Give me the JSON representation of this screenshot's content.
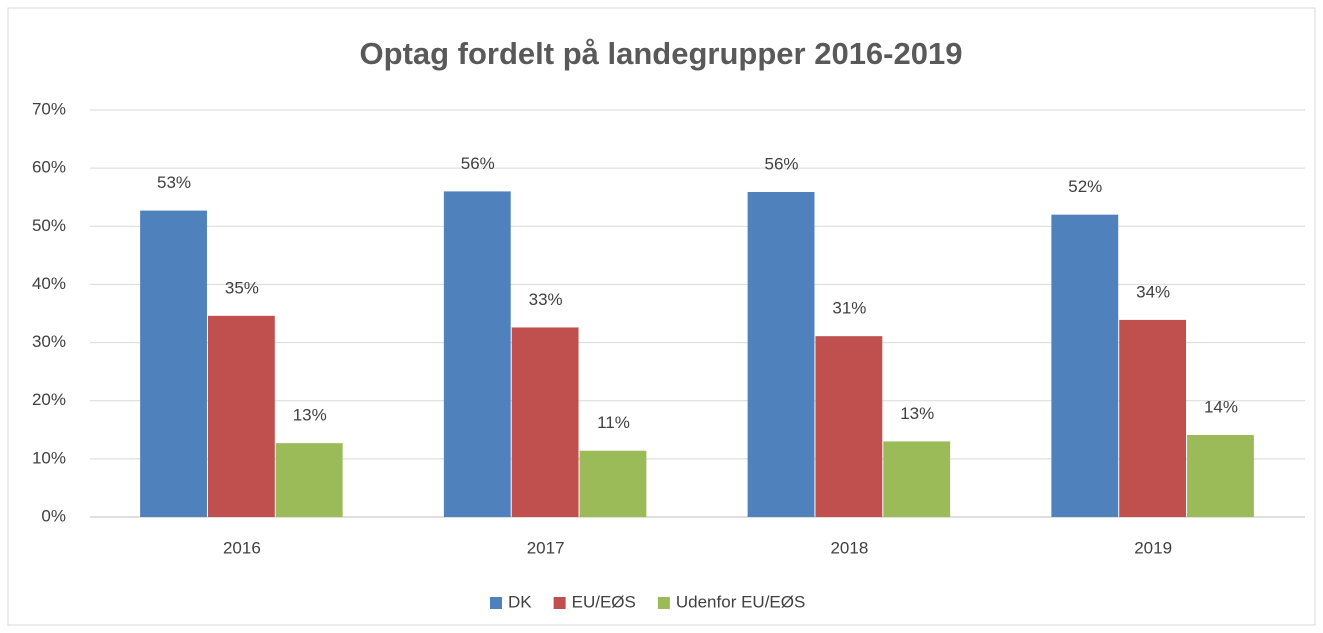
{
  "chart_data": {
    "type": "bar",
    "title": "Optag fordelt på landegrupper 2016-2019",
    "categories": [
      "2016",
      "2017",
      "2018",
      "2019"
    ],
    "series": [
      {
        "name": "DK",
        "color": "#4f81bd",
        "values": [
          52.7,
          56,
          55.9,
          52
        ],
        "value_labels": [
          "53%",
          "56%",
          "56%",
          "52%"
        ]
      },
      {
        "name": "EU/EØS",
        "color": "#c0504d",
        "values": [
          34.6,
          32.6,
          31.1,
          33.9
        ],
        "value_labels": [
          "35%",
          "33%",
          "31%",
          "34%"
        ]
      },
      {
        "name": "Udenfor EU/EØS",
        "color": "#9bbb59",
        "values": [
          12.7,
          11.4,
          13,
          14.1
        ],
        "value_labels": [
          "13%",
          "11%",
          "13%",
          "14%"
        ]
      }
    ],
    "ylim": [
      0,
      70
    ],
    "yticks": [
      {
        "value": 0,
        "label": "0%"
      },
      {
        "value": 10,
        "label": "10%"
      },
      {
        "value": 20,
        "label": "20%"
      },
      {
        "value": 30,
        "label": "30%"
      },
      {
        "value": 40,
        "label": "40%"
      },
      {
        "value": 50,
        "label": "50%"
      },
      {
        "value": 60,
        "label": "60%"
      },
      {
        "value": 70,
        "label": "70%"
      }
    ],
    "grid": true,
    "legend": "bottom"
  }
}
